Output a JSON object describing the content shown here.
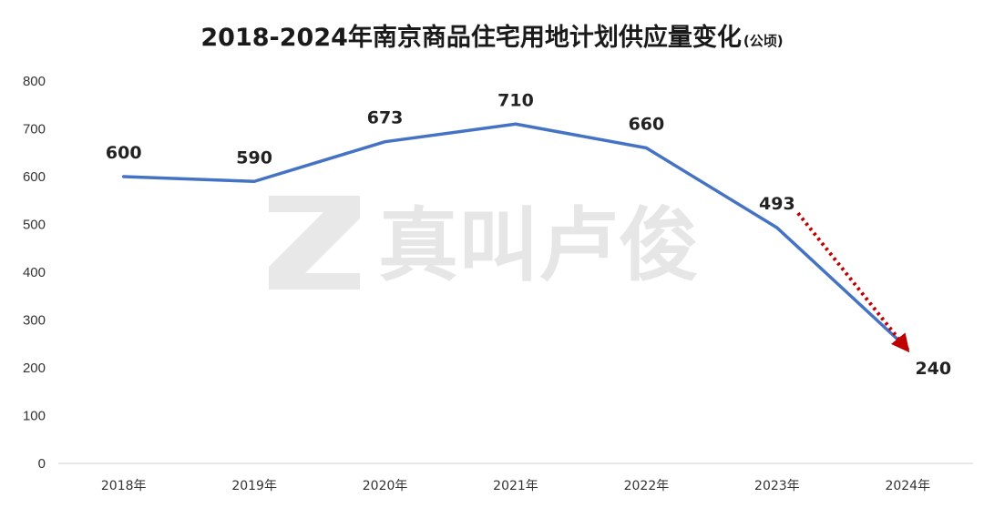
{
  "chart_data": {
    "type": "line",
    "title": "2018-2024年南京商品住宅用地计划供应量变化",
    "title_unit": "(公顷)",
    "categories": [
      "2018年",
      "2019年",
      "2020年",
      "2021年",
      "2022年",
      "2023年",
      "2024年"
    ],
    "values": [
      600,
      590,
      673,
      710,
      660,
      493,
      240
    ],
    "data_labels": [
      "600",
      "590",
      "673",
      "710",
      "660",
      "493",
      "240"
    ],
    "yticks": [
      "0",
      "100",
      "200",
      "300",
      "400",
      "500",
      "600",
      "700",
      "800"
    ],
    "ylim": [
      0,
      800
    ],
    "xlabel": "",
    "ylabel": "",
    "grid": false,
    "line_color": "#4472C4",
    "annotation": {
      "type": "dotted-arrow",
      "from_index": 5,
      "to_index": 6,
      "color": "#C00000"
    }
  },
  "watermark": {
    "text": "真叫卢俊",
    "logo_icon": "z-logo-icon"
  }
}
